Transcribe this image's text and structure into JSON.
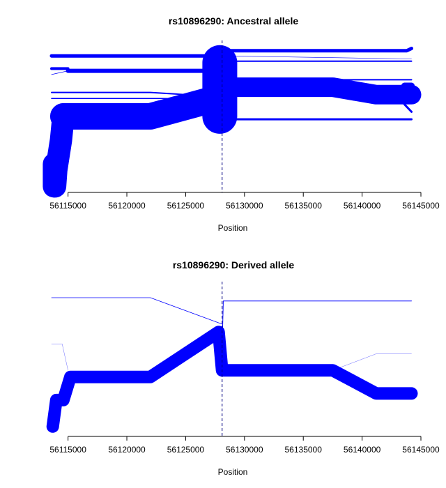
{
  "chart_data": [
    {
      "type": "line",
      "title": "rs10896290: Ancestral allele",
      "xlabel": "Position",
      "ylabel": "",
      "xlim": [
        56113600,
        56145000
      ],
      "xticks": [
        "56115000",
        "56120000",
        "56125000",
        "56130000",
        "56135000",
        "56140000",
        "56145000"
      ],
      "xtick_values": [
        56115000,
        56120000,
        56125000,
        56130000,
        56135000,
        56140000,
        56145000
      ],
      "core_marker_x": 56128100,
      "line_color": "#0000ff",
      "y_axis": "none",
      "series": [
        {
          "x": [
            56113600,
            56128100,
            56128100,
            56143800,
            56144200
          ],
          "y": [
            0.93,
            0.93,
            1.0,
            1.0,
            1.03
          ],
          "weight": 5
        },
        {
          "x": [
            56113600,
            56128100,
            56128100,
            56144200
          ],
          "y": [
            0.93,
            0.93,
            0.86,
            0.86
          ],
          "weight": 2
        },
        {
          "x": [
            56128100,
            56144200
          ],
          "y": [
            0.93,
            0.89
          ],
          "weight": 0.6
        },
        {
          "x": [
            56113600,
            56113600,
            56115000
          ],
          "y": [
            0.76,
            0.76,
            0.76
          ],
          "weight": 4
        },
        {
          "x": [
            56113600,
            56115000,
            56128100
          ],
          "y": [
            0.68,
            0.73,
            0.73
          ],
          "weight": 0.8
        },
        {
          "x": [
            56115000,
            56128100
          ],
          "y": [
            0.73,
            0.73
          ],
          "weight": 6
        },
        {
          "x": [
            56128100,
            56128100,
            56137500,
            56140500,
            56144200
          ],
          "y": [
            0.76,
            0.61,
            0.61,
            0.61,
            0.61
          ],
          "weight": 2
        },
        {
          "x": [
            56128100,
            56137500,
            56141200,
            56144200
          ],
          "y": [
            0.51,
            0.51,
            0.41,
            0.41
          ],
          "weight": 28
        },
        {
          "x": [
            56143600,
            56144200
          ],
          "y": [
            0.53,
            0.53
          ],
          "weight": 9
        },
        {
          "x": [
            56143600,
            56144200
          ],
          "y": [
            0.28,
            0.18
          ],
          "weight": 3
        },
        {
          "x": [
            56113600,
            56122000,
            56128100
          ],
          "y": [
            0.44,
            0.44,
            0.38
          ],
          "weight": 2
        },
        {
          "x": [
            56113600,
            56128100
          ],
          "y": [
            0.36,
            0.36
          ],
          "weight": 1.5
        },
        {
          "x": [
            56128100,
            56128600,
            56144200
          ],
          "y": [
            0.38,
            0.08,
            0.08
          ],
          "weight": 3
        },
        {
          "x": [
            56114600,
            56122000,
            56128100
          ],
          "y": [
            0.12,
            0.12,
            0.38
          ],
          "weight": 38
        },
        {
          "x": [
            56114600,
            56114400,
            56114000,
            56113900
          ],
          "y": [
            0.12,
            -0.2,
            -0.6,
            -0.82
          ],
          "weight": 32
        },
        {
          "x": [
            56113800,
            56113800
          ],
          "y": [
            -0.52,
            -0.82
          ],
          "weight": 32
        },
        {
          "x": [
            56127900,
            56127900
          ],
          "y": [
            0.84,
            0.12
          ],
          "weight": 50
        }
      ],
      "ylim": [
        -0.9,
        1.1
      ]
    },
    {
      "type": "line",
      "title": "rs10896290: Derived allele",
      "xlabel": "Position",
      "ylabel": "",
      "xlim": [
        56113600,
        56145000
      ],
      "xticks": [
        "56115000",
        "56120000",
        "56125000",
        "56130000",
        "56135000",
        "56140000",
        "56145000"
      ],
      "xtick_values": [
        56115000,
        56120000,
        56125000,
        56130000,
        56135000,
        56140000,
        56145000
      ],
      "core_marker_x": 56128100,
      "line_color": "#0000ff",
      "y_axis": "none",
      "series": [
        {
          "x": [
            56113600,
            56122000,
            56128100
          ],
          "y": [
            1.0,
            1.0,
            0.6
          ],
          "weight": 0.8
        },
        {
          "x": [
            56128100,
            56128200,
            56144200
          ],
          "y": [
            0.2,
            0.95,
            0.95
          ],
          "weight": 1
        },
        {
          "x": [
            56113600,
            56114500,
            56115000
          ],
          "y": [
            0.3,
            0.3,
            -0.1
          ],
          "weight": 0.3
        },
        {
          "x": [
            56137500,
            56141200,
            56144200
          ],
          "y": [
            -0.1,
            0.15,
            0.15
          ],
          "weight": 0.3
        },
        {
          "x": [
            56113700,
            56114000,
            56114600,
            56115200,
            56122000,
            56127800,
            56128100,
            56137500,
            56141200,
            56144200
          ],
          "y": [
            -0.95,
            -0.55,
            -0.55,
            -0.2,
            -0.2,
            0.48,
            -0.1,
            -0.1,
            -0.45,
            -0.45
          ],
          "weight": 18
        }
      ],
      "ylim": [
        -1.1,
        1.2
      ]
    }
  ]
}
